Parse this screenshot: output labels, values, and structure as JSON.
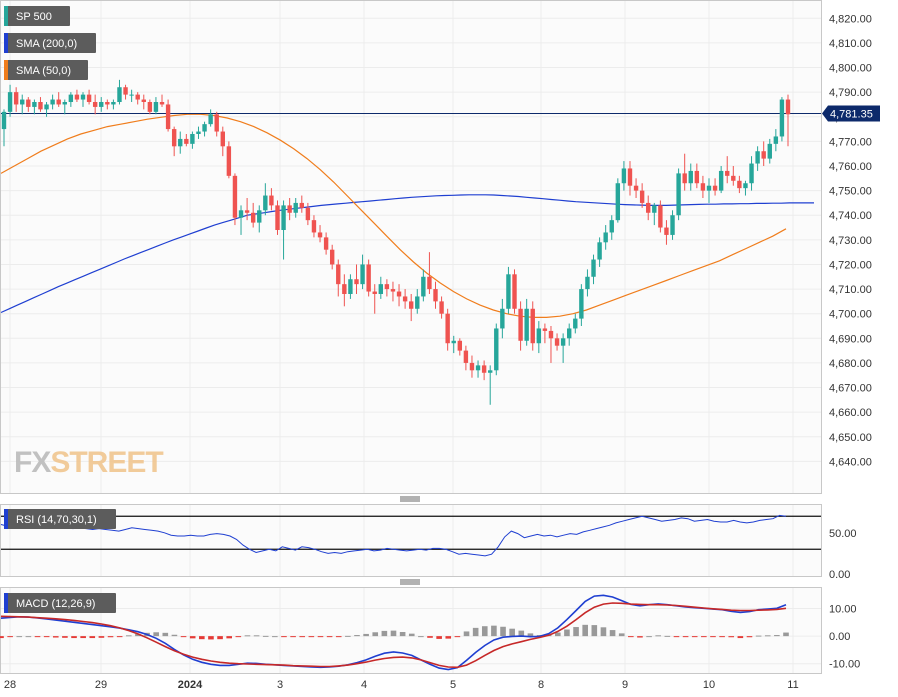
{
  "chart_data": {
    "type": "line",
    "main_panel": {
      "legend": [
        {
          "label": "SP 500",
          "color": "#26a69a"
        },
        {
          "label": "SMA (200,0)",
          "color": "#1f3fd1"
        },
        {
          "label": "SMA (50,0)",
          "color": "#f07d1c"
        }
      ],
      "last_price_label": "4,781.35",
      "last_price": 4781.35,
      "ylim": [
        4630,
        4825
      ],
      "y_ticks": [
        4820,
        4810,
        4800,
        4790,
        4780,
        4770,
        4760,
        4750,
        4740,
        4730,
        4720,
        4710,
        4700,
        4690,
        4680,
        4670,
        4660,
        4650,
        4640
      ],
      "y_tick_labels": [
        "4,820.00",
        "4,810.00",
        "4,800.00",
        "4,790.00",
        "4,780.00",
        "4,770.00",
        "4,760.00",
        "4,750.00",
        "4,740.00",
        "4,730.00",
        "4,720.00",
        "4,710.00",
        "4,700.00",
        "4,690.00",
        "4,680.00",
        "4,670.00",
        "4,660.00",
        "4,650.00",
        "4,640.00"
      ],
      "candles": [
        [
          4775,
          4783,
          4768,
          4782
        ],
        [
          4782,
          4793,
          4780,
          4790
        ],
        [
          4790,
          4792,
          4782,
          4785
        ],
        [
          4785,
          4789,
          4781,
          4787
        ],
        [
          4787,
          4788,
          4782,
          4784
        ],
        [
          4784,
          4787,
          4781,
          4786
        ],
        [
          4786,
          4788,
          4782,
          4783
        ],
        [
          4783,
          4786,
          4780,
          4785
        ],
        [
          4785,
          4789,
          4783,
          4787
        ],
        [
          4787,
          4790,
          4784,
          4785
        ],
        [
          4785,
          4787,
          4781,
          4786
        ],
        [
          4786,
          4790,
          4784,
          4789
        ],
        [
          4789,
          4791,
          4786,
          4787
        ],
        [
          4787,
          4790,
          4784,
          4789
        ],
        [
          4789,
          4791,
          4785,
          4786
        ],
        [
          4786,
          4789,
          4781,
          4784
        ],
        [
          4784,
          4788,
          4782,
          4786
        ],
        [
          4786,
          4787,
          4783,
          4785
        ],
        [
          4785,
          4787,
          4783,
          4786
        ],
        [
          4786,
          4795,
          4785,
          4792
        ],
        [
          4792,
          4793,
          4787,
          4789
        ],
        [
          4789,
          4791,
          4786,
          4789
        ],
        [
          4789,
          4790,
          4785,
          4787
        ],
        [
          4787,
          4789,
          4783,
          4786
        ],
        [
          4786,
          4787,
          4781,
          4782
        ],
        [
          4782,
          4788,
          4781,
          4786
        ],
        [
          4786,
          4789,
          4784,
          4785
        ],
        [
          4785,
          4787,
          4774,
          4775
        ],
        [
          4775,
          4776,
          4764,
          4768
        ],
        [
          4768,
          4774,
          4765,
          4771
        ],
        [
          4771,
          4773,
          4768,
          4769
        ],
        [
          4769,
          4774,
          4767,
          4773
        ],
        [
          4773,
          4776,
          4771,
          4774
        ],
        [
          4774,
          4778,
          4772,
          4777
        ],
        [
          4777,
          4783,
          4776,
          4781
        ],
        [
          4781,
          4782,
          4772,
          4774
        ],
        [
          4774,
          4776,
          4764,
          4768
        ],
        [
          4768,
          4770,
          4755,
          4756
        ],
        [
          4756,
          4757,
          4736,
          4739
        ],
        [
          4739,
          4744,
          4732,
          4742
        ],
        [
          4742,
          4747,
          4738,
          4741
        ],
        [
          4741,
          4745,
          4735,
          4737
        ],
        [
          4737,
          4744,
          4733,
          4742
        ],
        [
          4742,
          4753,
          4740,
          4748
        ],
        [
          4748,
          4751,
          4742,
          4744
        ],
        [
          4744,
          4746,
          4732,
          4734
        ],
        [
          4734,
          4746,
          4722,
          4744
        ],
        [
          4744,
          4747,
          4738,
          4741
        ],
        [
          4741,
          4747,
          4739,
          4745
        ],
        [
          4745,
          4748,
          4741,
          4743
        ],
        [
          4743,
          4745,
          4736,
          4738
        ],
        [
          4738,
          4740,
          4731,
          4733
        ],
        [
          4733,
          4736,
          4729,
          4731
        ],
        [
          4731,
          4733,
          4724,
          4726
        ],
        [
          4726,
          4728,
          4718,
          4720
        ],
        [
          4720,
          4722,
          4707,
          4712
        ],
        [
          4712,
          4716,
          4703,
          4708
        ],
        [
          4708,
          4716,
          4706,
          4714
        ],
        [
          4714,
          4720,
          4708,
          4712
        ],
        [
          4712,
          4724,
          4710,
          4720
        ],
        [
          4720,
          4722,
          4707,
          4709
        ],
        [
          4709,
          4712,
          4700,
          4708
        ],
        [
          4708,
          4715,
          4706,
          4712
        ],
        [
          4712,
          4714,
          4707,
          4710
        ],
        [
          4710,
          4713,
          4705,
          4709
        ],
        [
          4709,
          4712,
          4703,
          4707
        ],
        [
          4707,
          4710,
          4702,
          4705
        ],
        [
          4705,
          4708,
          4697,
          4702
        ],
        [
          4702,
          4710,
          4700,
          4707
        ],
        [
          4707,
          4718,
          4705,
          4715
        ],
        [
          4715,
          4725,
          4708,
          4710
        ],
        [
          4710,
          4713,
          4702,
          4705
        ],
        [
          4705,
          4707,
          4698,
          4700
        ],
        [
          4700,
          4702,
          4685,
          4688
        ],
        [
          4688,
          4691,
          4684,
          4689
        ],
        [
          4689,
          4690,
          4683,
          4685
        ],
        [
          4685,
          4687,
          4677,
          4680
        ],
        [
          4680,
          4683,
          4674,
          4677
        ],
        [
          4677,
          4681,
          4674,
          4679
        ],
        [
          4679,
          4681,
          4673,
          4676
        ],
        [
          4676,
          4679,
          4663,
          4677
        ],
        [
          4677,
          4696,
          4675,
          4694
        ],
        [
          4694,
          4706,
          4690,
          4702
        ],
        [
          4702,
          4719,
          4700,
          4716
        ],
        [
          4716,
          4718,
          4700,
          4702
        ],
        [
          4702,
          4705,
          4685,
          4689
        ],
        [
          4689,
          4706,
          4687,
          4702
        ],
        [
          4702,
          4705,
          4685,
          4688
        ],
        [
          4688,
          4697,
          4684,
          4694
        ],
        [
          4694,
          4696,
          4688,
          4693
        ],
        [
          4693,
          4695,
          4680,
          4690
        ],
        [
          4690,
          4692,
          4685,
          4687
        ],
        [
          4687,
          4692,
          4680,
          4690
        ],
        [
          4690,
          4696,
          4687,
          4694
        ],
        [
          4694,
          4700,
          4692,
          4698
        ],
        [
          4698,
          4712,
          4695,
          4710
        ],
        [
          4710,
          4718,
          4707,
          4715
        ],
        [
          4715,
          4724,
          4712,
          4722
        ],
        [
          4722,
          4731,
          4719,
          4729
        ],
        [
          4729,
          4736,
          4726,
          4733
        ],
        [
          4733,
          4740,
          4730,
          4738
        ],
        [
          4738,
          4755,
          4737,
          4753
        ],
        [
          4753,
          4762,
          4750,
          4759
        ],
        [
          4759,
          4762,
          4748,
          4752
        ],
        [
          4752,
          4755,
          4747,
          4750
        ],
        [
          4750,
          4753,
          4743,
          4745
        ],
        [
          4745,
          4748,
          4738,
          4741
        ],
        [
          4741,
          4745,
          4736,
          4744
        ],
        [
          4744,
          4746,
          4733,
          4735
        ],
        [
          4735,
          4738,
          4728,
          4732
        ],
        [
          4732,
          4742,
          4730,
          4740
        ],
        [
          4740,
          4759,
          4738,
          4757
        ],
        [
          4757,
          4765,
          4750,
          4753
        ],
        [
          4753,
          4761,
          4750,
          4758
        ],
        [
          4758,
          4761,
          4751,
          4753
        ],
        [
          4753,
          4756,
          4747,
          4750
        ],
        [
          4750,
          4755,
          4745,
          4752
        ],
        [
          4752,
          4755,
          4748,
          4750
        ],
        [
          4750,
          4760,
          4749,
          4758
        ],
        [
          4758,
          4764,
          4753,
          4756
        ],
        [
          4756,
          4760,
          4752,
          4754
        ],
        [
          4754,
          4756,
          4749,
          4751
        ],
        [
          4751,
          4754,
          4748,
          4753
        ],
        [
          4753,
          4764,
          4750,
          4761
        ],
        [
          4761,
          4768,
          4758,
          4766
        ],
        [
          4766,
          4770,
          4760,
          4763
        ],
        [
          4763,
          4771,
          4761,
          4769
        ],
        [
          4769,
          4775,
          4766,
          4772
        ],
        [
          4772,
          4788,
          4770,
          4787
        ],
        [
          4787,
          4789,
          4768,
          4781
        ]
      ],
      "sma200": [
        4700.5,
        4702.0,
        4703.5,
        4705.0,
        4706.5,
        4708.0,
        4709.5,
        4711.0,
        4712.4,
        4713.8,
        4715.2,
        4716.6,
        4718.0,
        4719.4,
        4720.8,
        4722.2,
        4723.5,
        4724.8,
        4726.1,
        4727.4,
        4728.7,
        4730.0,
        4731.2,
        4732.4,
        4733.6,
        4734.8,
        4736.0,
        4737.0,
        4738.0,
        4739.0,
        4740.0,
        4740.5,
        4741.0,
        4741.5,
        4742.0,
        4742.4,
        4742.8,
        4743.2,
        4743.6,
        4744.0,
        4744.3,
        4744.6,
        4744.9,
        4745.2,
        4745.5,
        4745.8,
        4746.1,
        4746.4,
        4746.7,
        4747.0,
        4747.3,
        4747.5,
        4747.7,
        4747.9,
        4748.0,
        4748.1,
        4748.2,
        4748.3,
        4748.3,
        4748.3,
        4748.2,
        4748.0,
        4747.8,
        4747.6,
        4747.3,
        4747.0,
        4746.7,
        4746.4,
        4746.1,
        4745.8,
        4745.5,
        4745.3,
        4745.1,
        4744.9,
        4744.7,
        4744.5,
        4744.3,
        4744.2,
        4744.1,
        4744.0,
        4744.0,
        4744.0,
        4744.1,
        4744.2,
        4744.3,
        4744.4,
        4744.5,
        4744.5,
        4744.6,
        4744.6,
        4744.7,
        4744.7,
        4744.8,
        4744.8,
        4744.9,
        4744.9,
        4745.0,
        4745.0,
        4745.0,
        4745.0
      ],
      "sma50_x_start": 0,
      "sma50": [
        4757.0,
        4760.0,
        4763.0,
        4766.0,
        4768.5,
        4771.0,
        4773.0,
        4774.5,
        4776.0,
        4777.0,
        4778.0,
        4779.0,
        4779.8,
        4780.5,
        4781.0,
        4781.0,
        4780.5,
        4779.5,
        4778.0,
        4776.0,
        4773.5,
        4770.5,
        4767.0,
        4763.0,
        4758.5,
        4753.5,
        4748.0,
        4742.5,
        4737.0,
        4731.5,
        4726.0,
        4721.0,
        4716.5,
        4712.5,
        4709.0,
        4706.0,
        4703.5,
        4701.5,
        4700.0,
        4699.0,
        4698.5,
        4698.5,
        4699.0,
        4700.0,
        4701.5,
        4703.5,
        4705.5,
        4707.5,
        4709.5,
        4711.5,
        4713.5,
        4715.5,
        4717.5,
        4719.5,
        4721.5,
        4724.0,
        4726.5,
        4729.0,
        4731.5,
        4734.5
      ]
    },
    "rsi_panel": {
      "legend": {
        "label": "RSI (14,70,30,1)",
        "color": "#1f3fd1"
      },
      "levels": [
        70,
        30
      ],
      "y_ticks": [
        50,
        0
      ],
      "y_tick_labels": [
        "50.00",
        "0.00"
      ],
      "ylim": [
        0,
        80
      ],
      "values": [
        60,
        58,
        57,
        58,
        57,
        56,
        56,
        57,
        58,
        57,
        56,
        55,
        56,
        55,
        54,
        55,
        54,
        53,
        52,
        54,
        56,
        55,
        54,
        53,
        52,
        50,
        47,
        46,
        46,
        47,
        46,
        46,
        48,
        49,
        48,
        46,
        42,
        35,
        30,
        26,
        28,
        30,
        28,
        33,
        31,
        29,
        33,
        32,
        30,
        27,
        25,
        26,
        25,
        27,
        28,
        29,
        30,
        28,
        29,
        31,
        30,
        29,
        28,
        29,
        30,
        29,
        31,
        31,
        30,
        27,
        24,
        25,
        24,
        23,
        22,
        24,
        33,
        45,
        52,
        49,
        44,
        46,
        48,
        46,
        47,
        45,
        47,
        49,
        48,
        51,
        53,
        55,
        57,
        59,
        62,
        64,
        66,
        68,
        70,
        68,
        66,
        64,
        65,
        66,
        68,
        67,
        64,
        65,
        66,
        64,
        63,
        63,
        65,
        63,
        62,
        63,
        65,
        66,
        67,
        71,
        70
      ]
    },
    "macd_panel": {
      "legend": {
        "label": "MACD (12,26,9)",
        "color": "#1f3fd1"
      },
      "y_ticks": [
        10,
        0,
        -10
      ],
      "y_tick_labels": [
        "10.00",
        "0.00",
        "-10.00"
      ],
      "ylim": [
        -13,
        16
      ],
      "macd": [
        6.5,
        6.8,
        7.0,
        6.9,
        6.6,
        6.2,
        5.8,
        5.4,
        5.0,
        4.6,
        4.2,
        3.8,
        3.4,
        2.9,
        2.3,
        1.6,
        0.6,
        -0.8,
        -2.6,
        -4.8,
        -6.8,
        -8.4,
        -9.5,
        -10.2,
        -10.6,
        -10.6,
        -10.2,
        -9.8,
        -9.9,
        -10.2,
        -10.4,
        -10.6,
        -10.8,
        -11.0,
        -11.2,
        -11.3,
        -11.2,
        -10.9,
        -10.4,
        -9.6,
        -8.6,
        -7.3,
        -6.2,
        -5.7,
        -6.1,
        -7.0,
        -8.6,
        -10.2,
        -11.6,
        -12.1,
        -11.4,
        -8.8,
        -5.9,
        -3.4,
        -1.4,
        -0.4,
        -0.1,
        0.0,
        -0.2,
        -0.1,
        0.9,
        3.0,
        6.0,
        9.3,
        12.6,
        14.5,
        14.8,
        14.2,
        12.9,
        11.5,
        11.0,
        11.4,
        11.7,
        11.4,
        11.0,
        10.6,
        10.3,
        10.1,
        9.8,
        9.6,
        9.0,
        8.6,
        8.9,
        9.6,
        9.8,
        10.1,
        11.4
      ],
      "signal": [
        7.2,
        7.1,
        7.0,
        6.9,
        6.7,
        6.5,
        6.3,
        6.0,
        5.7,
        5.3,
        4.9,
        4.4,
        3.8,
        3.0,
        2.0,
        0.8,
        -0.6,
        -2.2,
        -3.8,
        -5.3,
        -6.6,
        -7.6,
        -8.4,
        -9.0,
        -9.5,
        -9.8,
        -10.0,
        -10.1,
        -10.2,
        -10.3,
        -10.4,
        -10.5,
        -10.7,
        -10.8,
        -10.9,
        -11.0,
        -11.0,
        -10.8,
        -10.5,
        -10.0,
        -9.4,
        -8.7,
        -8.1,
        -7.7,
        -7.6,
        -7.9,
        -8.6,
        -9.6,
        -10.6,
        -11.2,
        -11.3,
        -10.5,
        -8.9,
        -7.0,
        -5.2,
        -3.8,
        -2.8,
        -2.0,
        -1.2,
        -0.5,
        0.3,
        1.7,
        3.6,
        6.0,
        8.5,
        10.5,
        11.6,
        12.0,
        11.9,
        11.6,
        11.5,
        11.4,
        11.4,
        11.3,
        11.1,
        10.8,
        10.5,
        10.2,
        9.9,
        9.7,
        9.4,
        9.3,
        9.3,
        9.4,
        9.5,
        9.7,
        10.1
      ]
    },
    "x_tick_labels": [
      "28",
      "29",
      "2024",
      "3",
      "4",
      "5",
      "8",
      "9",
      "10",
      "11"
    ],
    "watermark": "FXSTREET",
    "colors": {
      "bull": "#26a69a",
      "bear": "#ef5350",
      "sma200": "#1f3fd1",
      "sma50": "#f07d1c",
      "macd": "#1f3fd1",
      "signal": "#c62828",
      "hist_pos": "#999999",
      "hist_neg": "#e53935",
      "grid": "#ececec"
    }
  }
}
